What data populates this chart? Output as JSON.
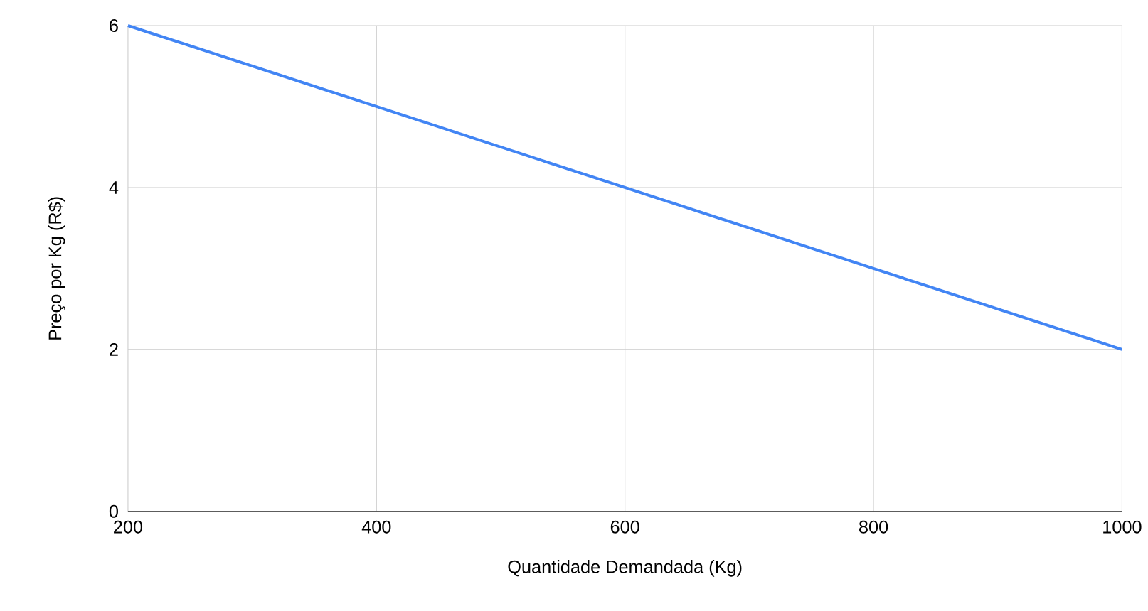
{
  "chart_data": {
    "type": "line",
    "xlabel": "Quantidade Demandada (Kg)",
    "ylabel": "Preço por Kg (R$)",
    "x": [
      200,
      400,
      600,
      800,
      1000
    ],
    "series": [
      {
        "color": "#4285f4",
        "values": [
          6,
          5,
          4,
          3,
          2
        ]
      }
    ],
    "xlim": [
      200,
      1000
    ],
    "xticks": [
      200,
      400,
      600,
      800,
      1000
    ],
    "ylim": [
      0,
      6
    ],
    "yticks": [
      0,
      2,
      4,
      6
    ],
    "grid": true,
    "marker": "none",
    "line_style": "solid"
  }
}
